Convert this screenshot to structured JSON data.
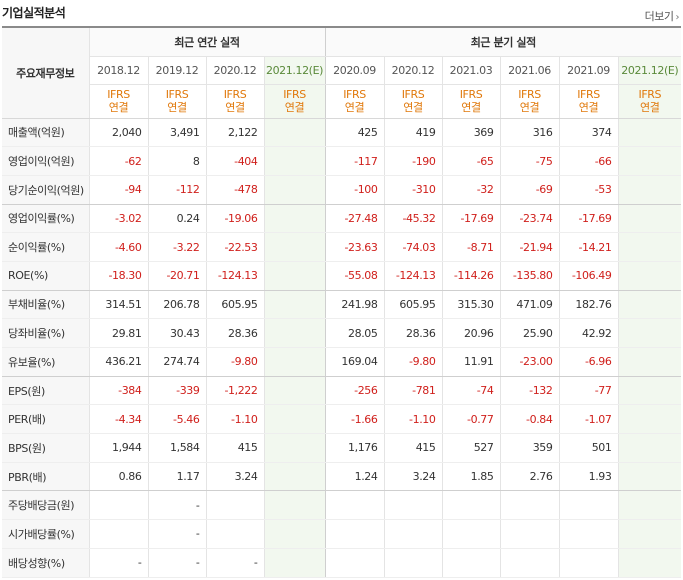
{
  "title": "기업실적분석",
  "more_label": "더보기",
  "header": {
    "main_info": "주요재무정보",
    "annual_group": "최근 연간 실적",
    "quarter_group": "최근 분기 실적",
    "annual_periods": [
      "2018.12",
      "2019.12",
      "2020.12",
      "2021.12(E)"
    ],
    "quarter_periods": [
      "2020.09",
      "2020.12",
      "2021.03",
      "2021.06",
      "2021.09",
      "2021.12(E)"
    ],
    "ifrs": "IFRS",
    "consolidated": "연결"
  },
  "rows": [
    {
      "label": "매출액(억원)",
      "annual": [
        "2,040",
        "3,491",
        "2,122",
        ""
      ],
      "quarter": [
        "425",
        "419",
        "369",
        "316",
        "374",
        ""
      ]
    },
    {
      "label": "영업이익(억원)",
      "annual": [
        "-62",
        "8",
        "-404",
        ""
      ],
      "quarter": [
        "-117",
        "-190",
        "-65",
        "-75",
        "-66",
        ""
      ]
    },
    {
      "label": "당기순이익(억원)",
      "annual": [
        "-94",
        "-112",
        "-478",
        ""
      ],
      "quarter": [
        "-100",
        "-310",
        "-32",
        "-69",
        "-53",
        ""
      ]
    },
    {
      "label": "영업이익률(%)",
      "annual": [
        "-3.02",
        "0.24",
        "-19.06",
        ""
      ],
      "quarter": [
        "-27.48",
        "-45.32",
        "-17.69",
        "-23.74",
        "-17.69",
        ""
      ]
    },
    {
      "label": "순이익률(%)",
      "annual": [
        "-4.60",
        "-3.22",
        "-22.53",
        ""
      ],
      "quarter": [
        "-23.63",
        "-74.03",
        "-8.71",
        "-21.94",
        "-14.21",
        ""
      ]
    },
    {
      "label": "ROE(%)",
      "annual": [
        "-18.30",
        "-20.71",
        "-124.13",
        ""
      ],
      "quarter": [
        "-55.08",
        "-124.13",
        "-114.26",
        "-135.80",
        "-106.49",
        ""
      ]
    },
    {
      "label": "부채비율(%)",
      "annual": [
        "314.51",
        "206.78",
        "605.95",
        ""
      ],
      "quarter": [
        "241.98",
        "605.95",
        "315.30",
        "471.09",
        "182.76",
        ""
      ]
    },
    {
      "label": "당좌비율(%)",
      "annual": [
        "29.81",
        "30.43",
        "28.36",
        ""
      ],
      "quarter": [
        "28.05",
        "28.36",
        "20.96",
        "25.90",
        "42.92",
        ""
      ]
    },
    {
      "label": "유보율(%)",
      "annual": [
        "436.21",
        "274.74",
        "-9.80",
        ""
      ],
      "quarter": [
        "169.04",
        "-9.80",
        "11.91",
        "-23.00",
        "-6.96",
        ""
      ]
    },
    {
      "label": "EPS(원)",
      "annual": [
        "-384",
        "-339",
        "-1,222",
        ""
      ],
      "quarter": [
        "-256",
        "-781",
        "-74",
        "-132",
        "-77",
        ""
      ]
    },
    {
      "label": "PER(배)",
      "annual": [
        "-4.34",
        "-5.46",
        "-1.10",
        ""
      ],
      "quarter": [
        "-1.66",
        "-1.10",
        "-0.77",
        "-0.84",
        "-1.07",
        ""
      ]
    },
    {
      "label": "BPS(원)",
      "annual": [
        "1,944",
        "1,584",
        "415",
        ""
      ],
      "quarter": [
        "1,176",
        "415",
        "527",
        "359",
        "501",
        ""
      ]
    },
    {
      "label": "PBR(배)",
      "annual": [
        "0.86",
        "1.17",
        "3.24",
        ""
      ],
      "quarter": [
        "1.24",
        "3.24",
        "1.85",
        "2.76",
        "1.93",
        ""
      ]
    },
    {
      "label": "주당배당금(원)",
      "annual": [
        "",
        "-",
        "",
        ""
      ],
      "quarter": [
        "",
        "",
        "",
        "",
        "",
        ""
      ]
    },
    {
      "label": "시가배당률(%)",
      "annual": [
        "",
        "-",
        "",
        ""
      ],
      "quarter": [
        "",
        "",
        "",
        "",
        "",
        ""
      ]
    },
    {
      "label": "배당성향(%)",
      "annual": [
        "-",
        "-",
        "-",
        ""
      ],
      "quarter": [
        "",
        "",
        "",
        "",
        "",
        ""
      ]
    }
  ],
  "group_separators_after": [
    2,
    5,
    8,
    12
  ],
  "colors": {
    "negative": "#d0201c",
    "ifrs": "#e0780a",
    "estimate_bg": "#f2f8ef",
    "estimate_text": "#5a8a3a"
  }
}
